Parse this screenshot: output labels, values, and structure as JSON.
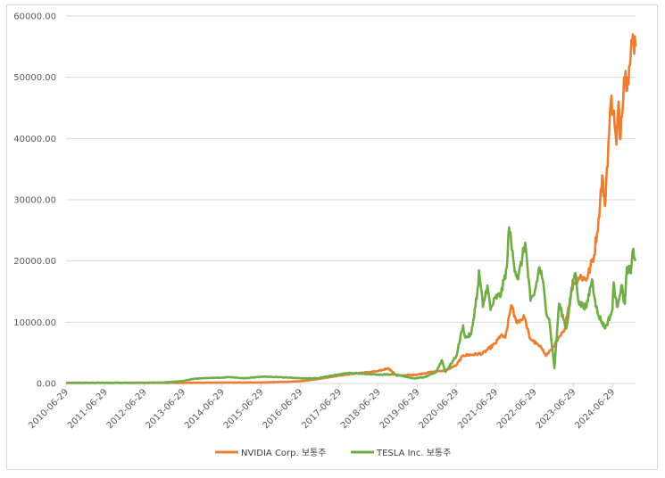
{
  "chart_data": {
    "type": "line",
    "ylim": [
      0,
      60000
    ],
    "yticks": [
      "0.00",
      "10000.00",
      "20000.00",
      "30000.00",
      "40000.00",
      "50000.00",
      "60000.00"
    ],
    "x_tick_labels": [
      "2010-06-29",
      "2011-06-29",
      "2012-06-29",
      "2013-06-29",
      "2014-06-29",
      "2015-06-29",
      "2016-06-29",
      "2017-06-29",
      "2018-06-29",
      "2019-06-29",
      "2020-06-29",
      "2021-06-29",
      "2022-06-29",
      "2023-06-29",
      "2024-06-29"
    ],
    "x_range": [
      "2010-06-29",
      "2025-01-31"
    ],
    "grid": "horizontal",
    "legend_position": "bottom",
    "series": [
      {
        "name": "NVIDIA Corp. 보통주",
        "color": "#ED7D31",
        "points": [
          [
            "2010-06-29",
            100
          ],
          [
            "2011-06-29",
            110
          ],
          [
            "2012-06-29",
            95
          ],
          [
            "2013-06-29",
            105
          ],
          [
            "2014-06-29",
            130
          ],
          [
            "2015-06-29",
            160
          ],
          [
            "2016-06-29",
            350
          ],
          [
            "2016-12-01",
            700
          ],
          [
            "2017-06-29",
            1300
          ],
          [
            "2017-12-01",
            1650
          ],
          [
            "2018-06-29",
            2000
          ],
          [
            "2018-10-01",
            2500
          ],
          [
            "2018-12-20",
            1250
          ],
          [
            "2019-06-29",
            1450
          ],
          [
            "2019-12-20",
            2000
          ],
          [
            "2020-03-15",
            2100
          ],
          [
            "2020-06-29",
            3000
          ],
          [
            "2020-09-01",
            4600
          ],
          [
            "2020-12-01",
            4700
          ],
          [
            "2021-03-01",
            4900
          ],
          [
            "2021-06-29",
            6500
          ],
          [
            "2021-08-15",
            7800
          ],
          [
            "2021-10-01",
            7500
          ],
          [
            "2021-11-25",
            12800
          ],
          [
            "2022-01-10",
            10000
          ],
          [
            "2022-03-28",
            10800
          ],
          [
            "2022-05-15",
            7500
          ],
          [
            "2022-07-15",
            6500
          ],
          [
            "2022-09-20",
            5500
          ],
          [
            "2022-10-15",
            4500
          ],
          [
            "2022-12-01",
            5500
          ],
          [
            "2023-02-01",
            7000
          ],
          [
            "2023-04-01",
            8500
          ],
          [
            "2023-05-30",
            14000
          ],
          [
            "2023-06-29",
            16500
          ],
          [
            "2023-08-30",
            17500
          ],
          [
            "2023-11-01",
            17000
          ],
          [
            "2024-01-10",
            21000
          ],
          [
            "2024-02-20",
            27000
          ],
          [
            "2024-03-25",
            34000
          ],
          [
            "2024-04-19",
            29000
          ],
          [
            "2024-05-01",
            33000
          ],
          [
            "2024-06-20",
            47000
          ],
          [
            "2024-07-20",
            42000
          ],
          [
            "2024-08-05",
            39000
          ],
          [
            "2024-08-25",
            46000
          ],
          [
            "2024-09-06",
            40000
          ],
          [
            "2024-10-15",
            50000
          ],
          [
            "2024-11-20",
            50000
          ],
          [
            "2024-12-15",
            53000
          ],
          [
            "2025-01-06",
            57000
          ],
          [
            "2025-01-31",
            55000
          ]
        ]
      },
      {
        "name": "TESLA Inc. 보통주",
        "color": "#70AD47",
        "points": [
          [
            "2010-06-29",
            100
          ],
          [
            "2011-06-29",
            110
          ],
          [
            "2012-06-29",
            120
          ],
          [
            "2013-01-01",
            150
          ],
          [
            "2013-06-29",
            400
          ],
          [
            "2013-09-29",
            750
          ],
          [
            "2014-02-25",
            900
          ],
          [
            "2014-06-29",
            950
          ],
          [
            "2014-09-01",
            1050
          ],
          [
            "2015-01-15",
            850
          ],
          [
            "2015-06-29",
            1100
          ],
          [
            "2015-12-01",
            1050
          ],
          [
            "2016-06-29",
            850
          ],
          [
            "2016-12-01",
            850
          ],
          [
            "2017-06-29",
            1500
          ],
          [
            "2017-09-15",
            1700
          ],
          [
            "2018-06-29",
            1450
          ],
          [
            "2018-12-01",
            1500
          ],
          [
            "2019-06-03",
            800
          ],
          [
            "2019-06-29",
            900
          ],
          [
            "2019-09-01",
            1000
          ],
          [
            "2019-12-20",
            1800
          ],
          [
            "2020-02-15",
            3800
          ],
          [
            "2020-03-20",
            1900
          ],
          [
            "2020-06-29",
            4500
          ],
          [
            "2020-08-31",
            9500
          ],
          [
            "2020-09-20",
            7500
          ],
          [
            "2020-11-15",
            8000
          ],
          [
            "2021-01-20",
            16000
          ],
          [
            "2021-01-27",
            18500
          ],
          [
            "2021-03-05",
            12500
          ],
          [
            "2021-04-15",
            16000
          ],
          [
            "2021-05-15",
            12000
          ],
          [
            "2021-06-29",
            14000
          ],
          [
            "2021-08-20",
            14500
          ],
          [
            "2021-10-15",
            19000
          ],
          [
            "2021-11-04",
            25500
          ],
          [
            "2021-12-20",
            19500
          ],
          [
            "2022-01-28",
            17000
          ],
          [
            "2022-04-04",
            23000
          ],
          [
            "2022-05-24",
            13500
          ],
          [
            "2022-06-29",
            14500
          ],
          [
            "2022-08-15",
            19000
          ],
          [
            "2022-09-15",
            17000
          ],
          [
            "2022-10-15",
            12000
          ],
          [
            "2022-11-15",
            10500
          ],
          [
            "2023-01-03",
            2500
          ],
          [
            "2023-02-15",
            13000
          ],
          [
            "2023-04-25",
            9000
          ],
          [
            "2023-06-29",
            17000
          ],
          [
            "2023-07-18",
            18000
          ],
          [
            "2023-08-20",
            13000
          ],
          [
            "2023-10-30",
            12500
          ],
          [
            "2023-12-20",
            17000
          ],
          [
            "2024-02-10",
            11500
          ],
          [
            "2024-04-22",
            9000
          ],
          [
            "2024-06-29",
            12000
          ],
          [
            "2024-07-10",
            16500
          ],
          [
            "2024-08-10",
            12500
          ],
          [
            "2024-09-20",
            16000
          ],
          [
            "2024-10-23",
            13000
          ],
          [
            "2024-11-12",
            19000
          ],
          [
            "2024-12-18",
            18000
          ],
          [
            "2025-01-10",
            22000
          ],
          [
            "2025-01-31",
            20000
          ]
        ]
      }
    ]
  }
}
